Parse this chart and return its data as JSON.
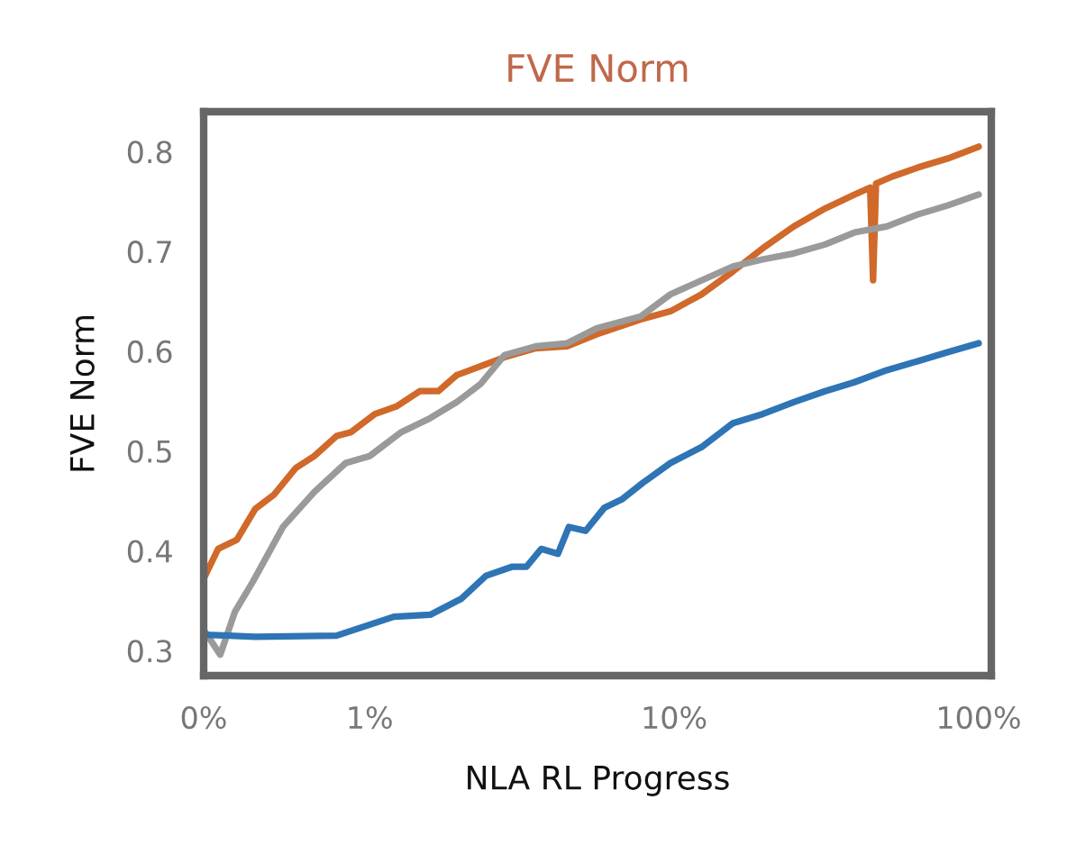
{
  "chart_data": {
    "type": "line",
    "title": "FVE Norm",
    "xlabel": "NLA RL Progress",
    "ylabel": "FVE Norm",
    "log": "x",
    "xlim": [
      0.285,
      110
    ],
    "xticks": [
      {
        "value": 0.285,
        "label": "0%"
      },
      {
        "value": 1,
        "label": "1%"
      },
      {
        "value": 10,
        "label": "10%"
      },
      {
        "value": 100,
        "label": "100%"
      }
    ],
    "ylim": [
      0.275,
      0.84
    ],
    "yticks": [
      0.3,
      0.4,
      0.5,
      0.6,
      0.7,
      0.8
    ],
    "grid": false,
    "marker": "none",
    "line_style": "solid",
    "series": [
      {
        "color": "#d0692a",
        "x": [
          0.285,
          0.318,
          0.366,
          0.421,
          0.484,
          0.572,
          0.658,
          0.778,
          0.869,
          1.04,
          1.23,
          1.46,
          1.68,
          1.93,
          2.31,
          2.77,
          3.51,
          4.45,
          5.56,
          7.77,
          9.72,
          12.3,
          15.6,
          19.5,
          24.7,
          31.3,
          39.1,
          44,
          45,
          46,
          52,
          63,
          79,
          100
        ],
        "values": [
          0.372,
          0.402,
          0.411,
          0.442,
          0.456,
          0.483,
          0.495,
          0.515,
          0.519,
          0.537,
          0.545,
          0.56,
          0.56,
          0.576,
          0.585,
          0.594,
          0.603,
          0.605,
          0.617,
          0.632,
          0.64,
          0.657,
          0.68,
          0.703,
          0.725,
          0.743,
          0.757,
          0.764,
          0.671,
          0.768,
          0.775,
          0.784,
          0.793,
          0.805
        ]
      },
      {
        "color": "#9a9a9a",
        "x": [
          0.285,
          0.323,
          0.361,
          0.415,
          0.519,
          0.658,
          0.834,
          1,
          1.27,
          1.58,
          1.93,
          2.31,
          2.77,
          3.51,
          4.45,
          5.56,
          7.77,
          9.72,
          12.3,
          15.6,
          19.5,
          24.7,
          31.3,
          39.1,
          49.9,
          63,
          79,
          100
        ],
        "values": [
          0.321,
          0.296,
          0.339,
          0.37,
          0.424,
          0.459,
          0.488,
          0.495,
          0.519,
          0.533,
          0.549,
          0.567,
          0.596,
          0.605,
          0.608,
          0.623,
          0.635,
          0.657,
          0.671,
          0.685,
          0.692,
          0.698,
          0.707,
          0.719,
          0.725,
          0.737,
          0.746,
          0.757
        ]
      },
      {
        "color": "#2f74b5",
        "x": [
          0.285,
          0.421,
          0.778,
          1.2,
          1.58,
          2.0,
          2.41,
          2.93,
          3.27,
          3.66,
          4.15,
          4.51,
          5.12,
          5.89,
          6.76,
          7.88,
          9.72,
          12.3,
          15.6,
          19.5,
          24.7,
          31.3,
          39.1,
          49.9,
          63,
          79,
          100
        ],
        "values": [
          0.316,
          0.314,
          0.315,
          0.334,
          0.336,
          0.352,
          0.375,
          0.384,
          0.384,
          0.402,
          0.397,
          0.424,
          0.42,
          0.443,
          0.452,
          0.468,
          0.488,
          0.504,
          0.528,
          0.537,
          0.549,
          0.56,
          0.569,
          0.581,
          0.59,
          0.599,
          0.608
        ]
      }
    ]
  }
}
